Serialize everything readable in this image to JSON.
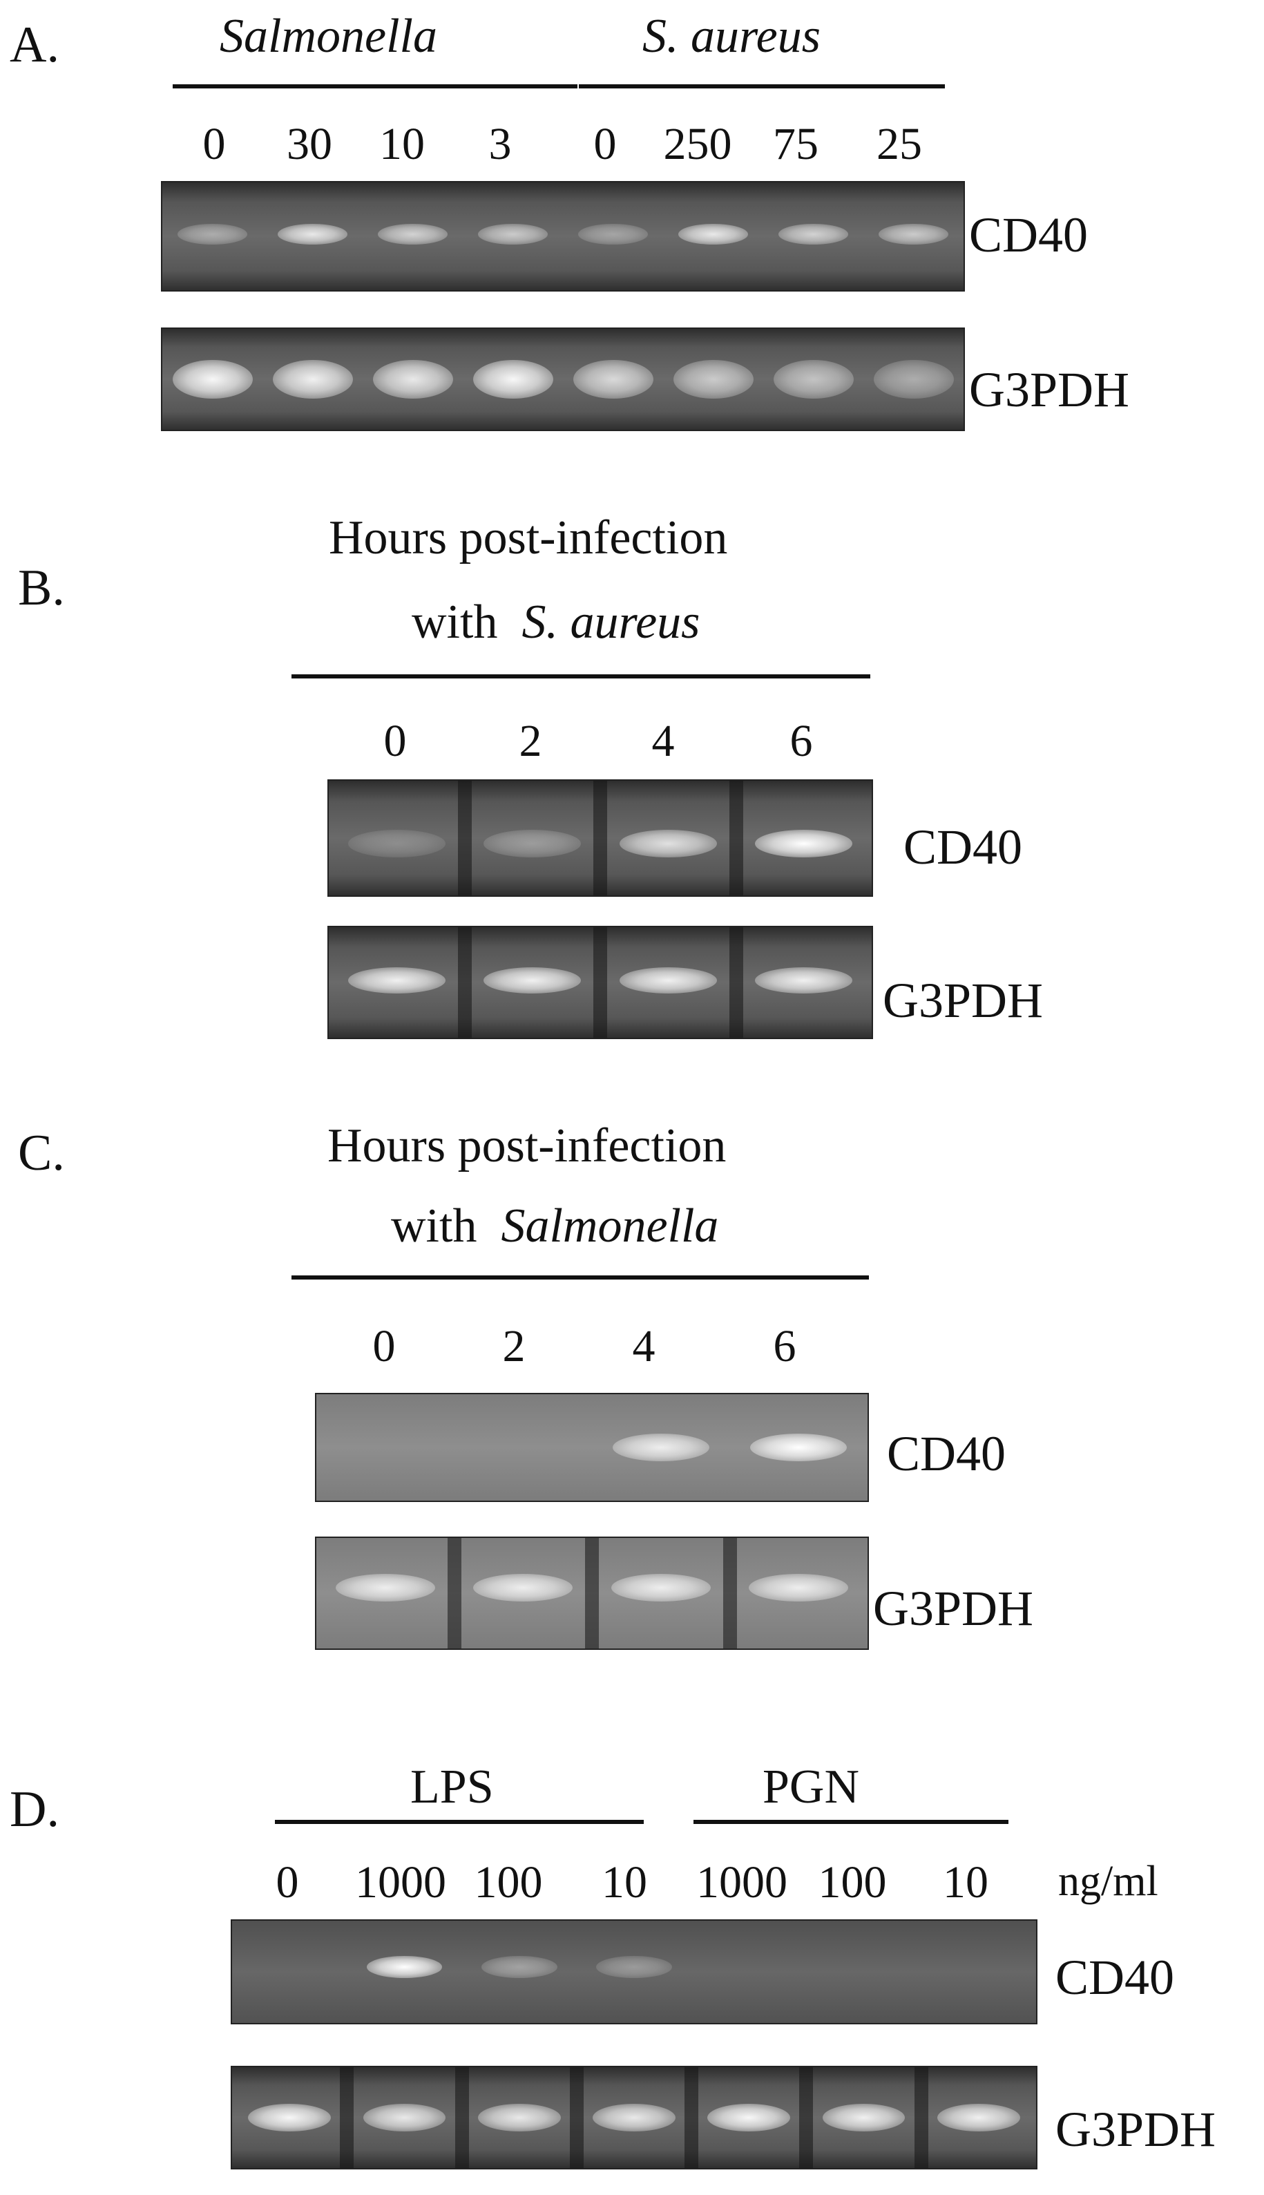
{
  "panels": {
    "A": {
      "label": "A.",
      "group1": "Salmonella",
      "group2": "S. aureus",
      "lanes": [
        "0",
        "30",
        "10",
        "3",
        "0",
        "250",
        "75",
        "25"
      ],
      "cd40": "CD40",
      "g3pdh": "G3PDH",
      "cd40_intensity": [
        0.45,
        0.85,
        0.7,
        0.65,
        0.4,
        0.85,
        0.7,
        0.65
      ],
      "g3pdh_intensity": [
        0.95,
        0.9,
        0.85,
        0.95,
        0.75,
        0.65,
        0.6,
        0.45
      ]
    },
    "B": {
      "label": "B.",
      "title1": "Hours post-infection",
      "title2_prefix": "with",
      "title2_italic": "S. aureus",
      "lanes": [
        "0",
        "2",
        "4",
        "6"
      ],
      "cd40": "CD40",
      "g3pdh": "G3PDH",
      "cd40_intensity": [
        0.25,
        0.35,
        0.8,
        1.0
      ],
      "g3pdh_intensity": [
        0.9,
        0.9,
        0.9,
        0.9
      ]
    },
    "C": {
      "label": "C.",
      "title1": "Hours post-infection",
      "title2_prefix": "with",
      "title2_italic": "Salmonella",
      "lanes": [
        "0",
        "2",
        "4",
        "6"
      ],
      "cd40": "CD40",
      "g3pdh": "G3PDH",
      "cd40_intensity": [
        0.0,
        0.0,
        0.85,
        1.0
      ],
      "g3pdh_intensity": [
        0.85,
        0.85,
        0.85,
        0.85
      ]
    },
    "D": {
      "label": "D.",
      "group1": "LPS",
      "group2": "PGN",
      "lanes": [
        "0",
        "1000",
        "100",
        "10",
        "1000",
        "100",
        "10"
      ],
      "unit": "ng/ml",
      "cd40": "CD40",
      "g3pdh": "G3PDH",
      "cd40_intensity": [
        0.0,
        1.0,
        0.4,
        0.35,
        0.0,
        0.0,
        0.0
      ],
      "g3pdh_intensity": [
        0.95,
        0.85,
        0.85,
        0.85,
        0.95,
        0.9,
        0.9
      ]
    }
  }
}
